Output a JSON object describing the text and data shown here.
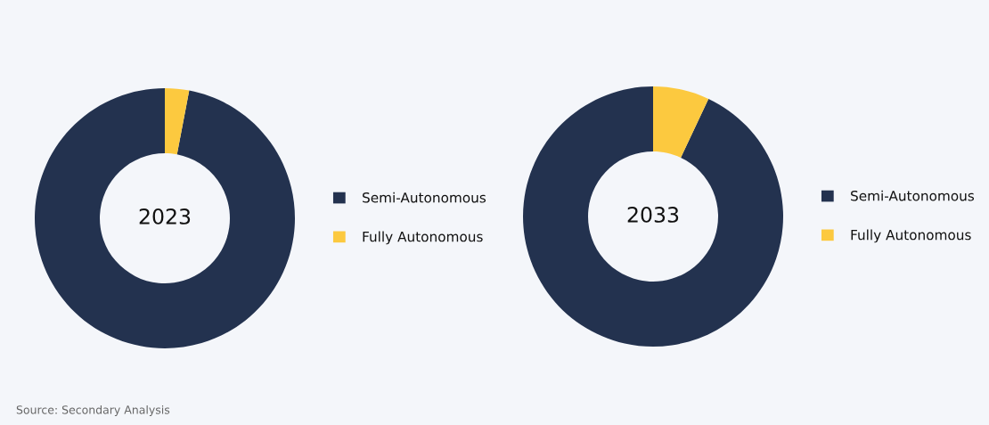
{
  "chart_data": [
    {
      "type": "donut",
      "title": "2023",
      "categories": [
        "Semi-Autonomous",
        "Fully Autonomous"
      ],
      "values": [
        97,
        3
      ],
      "colors": [
        "#23324f",
        "#fcc93f"
      ],
      "legend": "right"
    },
    {
      "type": "donut",
      "title": "2033",
      "categories": [
        "Semi-Autonomous",
        "Fully Autonomous"
      ],
      "values": [
        93,
        7
      ],
      "colors": [
        "#23324f",
        "#fcc93f"
      ],
      "legend": "right",
      "annotations": [
        "Source: Secondary Analysis"
      ]
    }
  ]
}
